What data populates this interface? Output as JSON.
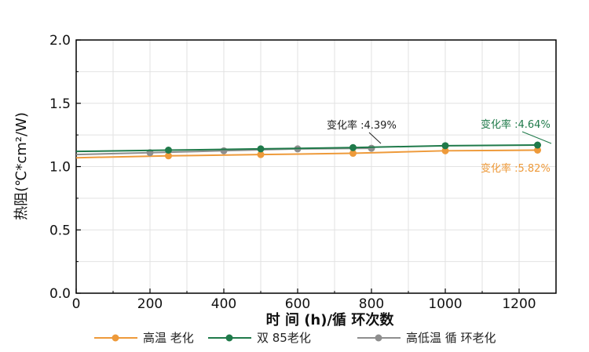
{
  "chart_data": {
    "type": "line",
    "xlabel": "时 间 (h)/循 环次数",
    "ylabel": "热阻(℃*cm²/W)",
    "xlim": [
      0,
      1300
    ],
    "ylim": [
      0.0,
      2.0
    ],
    "xticks": [
      0,
      200,
      400,
      600,
      800,
      1000,
      1200
    ],
    "yticks": [
      "0.0",
      "0.5",
      "1.0",
      "1.5",
      "2.0"
    ],
    "grid": true,
    "legend_position": "bottom",
    "series": [
      {
        "name": "高温 老化",
        "color": "#ee9a3a",
        "x": [
          0,
          250,
          500,
          750,
          1000,
          1250
        ],
        "y": [
          1.07,
          1.085,
          1.095,
          1.105,
          1.125,
          1.13
        ],
        "annotation": "变化率 :5.82%"
      },
      {
        "name": "双 85老化",
        "color": "#1f7a4a",
        "x": [
          0,
          250,
          500,
          750,
          1000,
          1250
        ],
        "y": [
          1.12,
          1.13,
          1.14,
          1.15,
          1.165,
          1.17
        ],
        "annotation": "变化率 :4.64%"
      },
      {
        "name": "高低温 循 环老化",
        "color": "#8e8e8e",
        "x": [
          0,
          200,
          400,
          600,
          800
        ],
        "y": [
          1.095,
          1.11,
          1.125,
          1.14,
          1.145
        ],
        "annotation": "变化率 :4.39%"
      }
    ]
  }
}
